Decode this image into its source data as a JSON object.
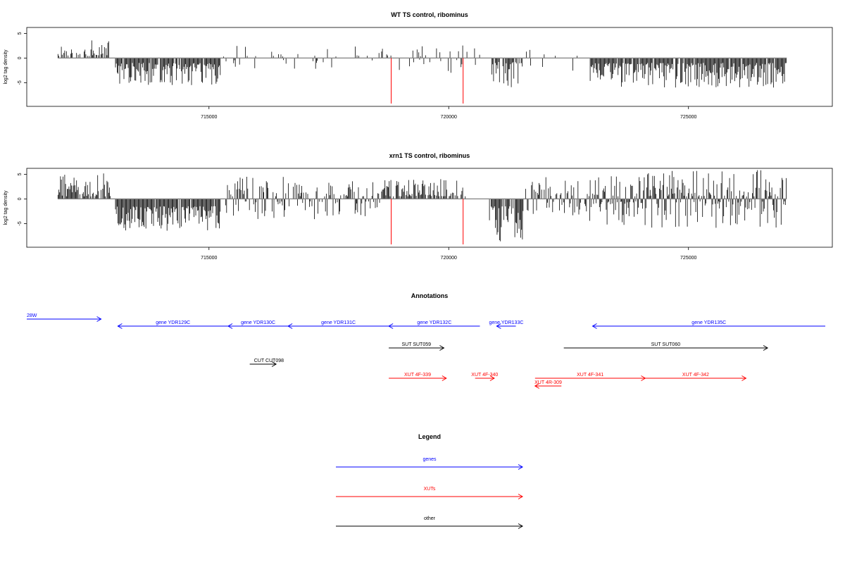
{
  "colors": {
    "gene": "#0000ff",
    "xut": "#ff0000",
    "other": "#000000",
    "baseline": "#808080",
    "marker": "#ff0000"
  },
  "chart_data": [
    {
      "type": "bar",
      "title": "WT TS control, ribominus",
      "xlabel": "",
      "ylabel": "log2 tag density",
      "xlim": [
        711200,
        728000
      ],
      "ylim": [
        -9.8,
        6.2
      ],
      "x_ticks": [
        715000,
        720000,
        725000
      ],
      "y_ticks": [
        5,
        0,
        -5
      ],
      "red_markers_x": [
        718800,
        720300
      ],
      "tracks": [
        {
          "start": 711850,
          "end": 712950,
          "mode": "pos",
          "min": 0.4,
          "max": 3.6,
          "density": 0.6,
          "seed": 11
        },
        {
          "start": 713050,
          "end": 715250,
          "mode": "neg",
          "min": 1.0,
          "max": 5.5,
          "density": 0.95,
          "seed": 12
        },
        {
          "start": 715250,
          "end": 718600,
          "mode": "mixed",
          "min": 0.3,
          "max": 2.5,
          "density": 0.18,
          "seed": 13
        },
        {
          "start": 718600,
          "end": 720650,
          "mode": "mixed",
          "min": 0.3,
          "max": 3.0,
          "density": 0.25,
          "seed": 14
        },
        {
          "start": 720900,
          "end": 721550,
          "mode": "neg",
          "min": 0.8,
          "max": 6.0,
          "density": 0.8,
          "seed": 15
        },
        {
          "start": 721550,
          "end": 722950,
          "mode": "mixed",
          "min": 0.3,
          "max": 2.7,
          "density": 0.12,
          "seed": 16
        },
        {
          "start": 722950,
          "end": 727050,
          "mode": "neg",
          "min": 1.0,
          "max": 6.0,
          "density": 0.95,
          "seed": 17
        }
      ]
    },
    {
      "type": "bar",
      "title": "xrn1 TS control, ribominus",
      "xlabel": "",
      "ylabel": "log2 tag density",
      "xlim": [
        711200,
        728000
      ],
      "ylim": [
        -9.8,
        6.2
      ],
      "x_ticks": [
        715000,
        720000,
        725000
      ],
      "y_ticks": [
        5,
        0,
        -5
      ],
      "red_markers_x": [
        718800,
        720300
      ],
      "tracks": [
        {
          "start": 711850,
          "end": 712950,
          "mode": "pos",
          "min": 0.5,
          "max": 5.5,
          "density": 0.8,
          "seed": 21
        },
        {
          "start": 713050,
          "end": 715250,
          "mode": "neg",
          "min": 1.5,
          "max": 6.5,
          "density": 0.97,
          "seed": 22
        },
        {
          "start": 715350,
          "end": 718600,
          "mode": "mixed",
          "min": 0.5,
          "max": 4.5,
          "density": 0.65,
          "seed": 23
        },
        {
          "start": 718600,
          "end": 720350,
          "mode": "pos",
          "min": 0.5,
          "max": 4.0,
          "density": 0.75,
          "seed": 24
        },
        {
          "start": 720850,
          "end": 721550,
          "mode": "neg",
          "min": 1.5,
          "max": 9.0,
          "density": 0.9,
          "seed": 25
        },
        {
          "start": 721550,
          "end": 722950,
          "mode": "mixed",
          "min": 0.5,
          "max": 4.5,
          "density": 0.6,
          "seed": 26
        },
        {
          "start": 722950,
          "end": 727050,
          "mode": "mixed",
          "min": 0.5,
          "max": 6.0,
          "density": 0.95,
          "seed": 27
        }
      ]
    }
  ],
  "annotations": {
    "title": "Annotations",
    "items": [
      {
        "label": "28W",
        "kind": "gene",
        "start": 711200,
        "end": 712750,
        "dir": "right",
        "row": 0
      },
      {
        "label": "gene YDR129C",
        "kind": "gene",
        "start": 713100,
        "end": 715400,
        "dir": "left",
        "row": 1
      },
      {
        "label": "gene YDR130C",
        "kind": "gene",
        "start": 715400,
        "end": 716650,
        "dir": "left",
        "row": 1
      },
      {
        "label": "gene YDR131C",
        "kind": "gene",
        "start": 716650,
        "end": 718750,
        "dir": "left",
        "row": 1
      },
      {
        "label": "gene YDR132C",
        "kind": "gene",
        "start": 718750,
        "end": 720650,
        "dir": "left",
        "row": 1
      },
      {
        "label": "gene YDR133C",
        "kind": "gene",
        "start": 721000,
        "end": 721400,
        "dir": "left",
        "row": 1
      },
      {
        "label": "gene YDR135C",
        "kind": "gene",
        "start": 723000,
        "end": 728000,
        "dir": "left",
        "row": 1
      },
      {
        "label": "SUT SUT059",
        "kind": "other",
        "start": 718750,
        "end": 719900,
        "dir": "right",
        "row": 2
      },
      {
        "label": "SUT SUT060",
        "kind": "other",
        "start": 722400,
        "end": 726650,
        "dir": "right",
        "row": 2
      },
      {
        "label": "CUT CUT098",
        "kind": "other",
        "start": 715850,
        "end": 716400,
        "dir": "right",
        "row": 3
      },
      {
        "label": "XUT 4F-339",
        "kind": "xut",
        "start": 718750,
        "end": 719950,
        "dir": "right",
        "row": 4
      },
      {
        "label": "XUT 4F-340",
        "kind": "xut",
        "start": 720550,
        "end": 720950,
        "dir": "right",
        "row": 4
      },
      {
        "label": "XUT 4F-341",
        "kind": "xut",
        "start": 721800,
        "end": 724100,
        "dir": "right",
        "row": 4
      },
      {
        "label": "XUT 4F-342",
        "kind": "xut",
        "start": 724100,
        "end": 726200,
        "dir": "right",
        "row": 4
      },
      {
        "label": "XUT 4R-309",
        "kind": "xut",
        "start": 721800,
        "end": 722350,
        "dir": "left",
        "row": 5
      }
    ]
  },
  "legend": {
    "title": "Legend",
    "entries": [
      {
        "label": "genes",
        "kind": "gene"
      },
      {
        "label": "XUTs",
        "kind": "xut"
      },
      {
        "label": "other",
        "kind": "other"
      }
    ]
  }
}
